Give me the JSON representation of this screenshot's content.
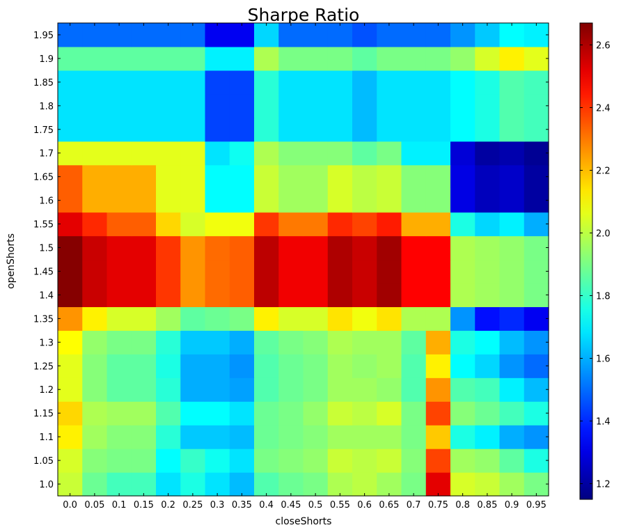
{
  "chart_data": {
    "type": "heatmap",
    "title": "Sharpe Ratio",
    "xlabel": "closeShorts",
    "ylabel": "openShorts",
    "x": [
      "0.0",
      "0.05",
      "0.1",
      "0.15",
      "0.2",
      "0.25",
      "0.3",
      "0.35",
      "0.4",
      "0.45",
      "0.5",
      "0.55",
      "0.6",
      "0.65",
      "0.7",
      "0.75",
      "0.8",
      "0.85",
      "0.9",
      "0.95"
    ],
    "y": [
      "1.0",
      "1.05",
      "1.1",
      "1.15",
      "1.2",
      "1.25",
      "1.3",
      "1.35",
      "1.4",
      "1.45",
      "1.5",
      "1.55",
      "1.6",
      "1.65",
      "1.7",
      "1.75",
      "1.8",
      "1.85",
      "1.9",
      "1.95"
    ],
    "colorbar": {
      "range": [
        1.15,
        2.67
      ],
      "ticks": [
        "1.2",
        "1.4",
        "1.6",
        "1.8",
        "2.0",
        "2.2",
        "2.4",
        "2.6"
      ],
      "colormap": "jet"
    },
    "values": [
      [
        2.02,
        1.88,
        1.82,
        1.82,
        1.68,
        1.76,
        1.68,
        1.62,
        1.84,
        1.88,
        1.9,
        1.98,
        2.0,
        1.96,
        1.9,
        2.52,
        2.04,
        2.02,
        1.96,
        1.9
      ],
      [
        2.04,
        1.92,
        1.9,
        1.9,
        1.72,
        1.8,
        1.74,
        1.68,
        1.9,
        1.92,
        1.94,
        2.02,
        2.0,
        2.02,
        1.92,
        2.38,
        1.96,
        1.94,
        1.86,
        1.76
      ],
      [
        2.12,
        1.96,
        1.92,
        1.92,
        1.78,
        1.64,
        1.64,
        1.62,
        1.88,
        1.9,
        1.92,
        1.96,
        1.96,
        1.96,
        1.9,
        2.18,
        1.76,
        1.7,
        1.6,
        1.56
      ],
      [
        2.16,
        1.98,
        1.96,
        1.96,
        1.84,
        1.72,
        1.72,
        1.68,
        1.88,
        1.9,
        1.94,
        2.02,
        2.0,
        2.04,
        1.9,
        2.38,
        1.92,
        1.88,
        1.82,
        1.76
      ],
      [
        2.06,
        1.92,
        1.86,
        1.86,
        1.78,
        1.6,
        1.6,
        1.58,
        1.84,
        1.88,
        1.9,
        1.96,
        1.96,
        1.94,
        1.84,
        2.26,
        1.84,
        1.82,
        1.7,
        1.62
      ],
      [
        2.06,
        1.92,
        1.86,
        1.86,
        1.76,
        1.6,
        1.6,
        1.56,
        1.84,
        1.88,
        1.9,
        1.96,
        1.94,
        1.96,
        1.84,
        2.12,
        1.72,
        1.66,
        1.56,
        1.5
      ],
      [
        2.1,
        1.94,
        1.9,
        1.9,
        1.78,
        1.64,
        1.64,
        1.6,
        1.86,
        1.9,
        1.92,
        1.98,
        1.96,
        1.96,
        1.86,
        2.22,
        1.76,
        1.72,
        1.62,
        1.56
      ],
      [
        2.26,
        2.12,
        2.04,
        2.04,
        1.96,
        1.86,
        1.88,
        1.9,
        2.12,
        2.04,
        2.04,
        2.14,
        2.08,
        2.14,
        1.98,
        1.98,
        1.56,
        1.36,
        1.4,
        1.32
      ],
      [
        2.66,
        2.56,
        2.52,
        2.52,
        2.4,
        2.26,
        2.32,
        2.34,
        2.58,
        2.5,
        2.5,
        2.6,
        2.56,
        2.62,
        2.48,
        2.48,
        1.98,
        1.96,
        1.94,
        1.9
      ],
      [
        2.66,
        2.56,
        2.52,
        2.52,
        2.4,
        2.26,
        2.32,
        2.34,
        2.58,
        2.5,
        2.5,
        2.6,
        2.56,
        2.62,
        2.48,
        2.48,
        1.98,
        1.96,
        1.94,
        1.9
      ],
      [
        2.66,
        2.56,
        2.52,
        2.52,
        2.4,
        2.26,
        2.32,
        2.34,
        2.58,
        2.5,
        2.5,
        2.6,
        2.56,
        2.62,
        2.48,
        2.48,
        1.98,
        1.96,
        1.94,
        1.9
      ],
      [
        2.52,
        2.42,
        2.34,
        2.34,
        2.16,
        2.04,
        2.08,
        2.08,
        2.4,
        2.3,
        2.3,
        2.42,
        2.38,
        2.44,
        2.22,
        2.22,
        1.76,
        1.66,
        1.7,
        1.6
      ],
      [
        2.34,
        2.22,
        2.22,
        2.22,
        2.06,
        2.06,
        1.72,
        1.72,
        2.02,
        1.96,
        1.96,
        2.04,
        2.0,
        2.02,
        1.92,
        1.92,
        1.3,
        1.24,
        1.26,
        1.2
      ],
      [
        2.34,
        2.22,
        2.22,
        2.22,
        2.06,
        2.06,
        1.72,
        1.72,
        2.02,
        1.96,
        1.96,
        2.04,
        2.0,
        2.02,
        1.92,
        1.92,
        1.3,
        1.24,
        1.26,
        1.2
      ],
      [
        2.06,
        2.06,
        2.06,
        2.06,
        2.06,
        2.06,
        1.68,
        1.74,
        1.98,
        1.92,
        1.92,
        1.92,
        1.86,
        1.9,
        1.7,
        1.7,
        1.28,
        1.2,
        1.22,
        1.18
      ],
      [
        1.68,
        1.68,
        1.68,
        1.68,
        1.68,
        1.68,
        1.44,
        1.44,
        1.78,
        1.68,
        1.68,
        1.68,
        1.62,
        1.68,
        1.68,
        1.68,
        1.72,
        1.76,
        1.84,
        1.82
      ],
      [
        1.68,
        1.68,
        1.68,
        1.68,
        1.68,
        1.68,
        1.44,
        1.44,
        1.78,
        1.68,
        1.68,
        1.68,
        1.62,
        1.68,
        1.68,
        1.68,
        1.72,
        1.76,
        1.84,
        1.82
      ],
      [
        1.68,
        1.68,
        1.68,
        1.68,
        1.68,
        1.68,
        1.44,
        1.44,
        1.78,
        1.68,
        1.68,
        1.68,
        1.62,
        1.68,
        1.68,
        1.68,
        1.72,
        1.76,
        1.84,
        1.82
      ],
      [
        1.86,
        1.86,
        1.86,
        1.86,
        1.86,
        1.86,
        1.7,
        1.7,
        1.98,
        1.9,
        1.9,
        1.9,
        1.86,
        1.9,
        1.9,
        1.9,
        1.94,
        2.04,
        2.12,
        2.06
      ],
      [
        1.5,
        1.5,
        1.5,
        1.5,
        1.5,
        1.5,
        1.32,
        1.32,
        1.66,
        1.5,
        1.5,
        1.5,
        1.46,
        1.5,
        1.5,
        1.5,
        1.56,
        1.64,
        1.72,
        1.7
      ]
    ]
  }
}
